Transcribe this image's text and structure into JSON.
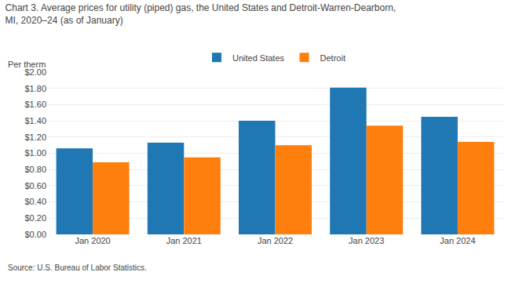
{
  "chart_data": {
    "type": "bar",
    "title": "Chart 3. Average prices for utility (piped) gas, the United States and Detroit-Warren-Dearborn,\nMI, 2020–24 (as of January)",
    "ylabel": "Per therm",
    "source": "Source: U.S. Bureau of Labor Statistics.",
    "categories": [
      "Jan 2020",
      "Jan 2021",
      "Jan 2022",
      "Jan 2023",
      "Jan 2024"
    ],
    "series": [
      {
        "name": "United States",
        "values": [
          1.06,
          1.13,
          1.4,
          1.81,
          1.45
        ]
      },
      {
        "name": "Detroit",
        "values": [
          0.89,
          0.95,
          1.1,
          1.34,
          1.14
        ]
      }
    ],
    "ylim": [
      0,
      2.0
    ],
    "yticks": [
      {
        "value": 0.0,
        "label": "$0.00"
      },
      {
        "value": 0.2,
        "label": "$0.20"
      },
      {
        "value": 0.4,
        "label": "$0.40"
      },
      {
        "value": 0.6,
        "label": "$0.60"
      },
      {
        "value": 0.8,
        "label": "$0.80"
      },
      {
        "value": 1.0,
        "label": "$1.00"
      },
      {
        "value": 1.2,
        "label": "$1.20"
      },
      {
        "value": 1.4,
        "label": "$1.40"
      },
      {
        "value": 1.6,
        "label": "$1.60"
      },
      {
        "value": 1.8,
        "label": "$1.80"
      },
      {
        "value": 2.0,
        "label": "$2.00"
      }
    ],
    "grid": true,
    "legend": "top"
  }
}
